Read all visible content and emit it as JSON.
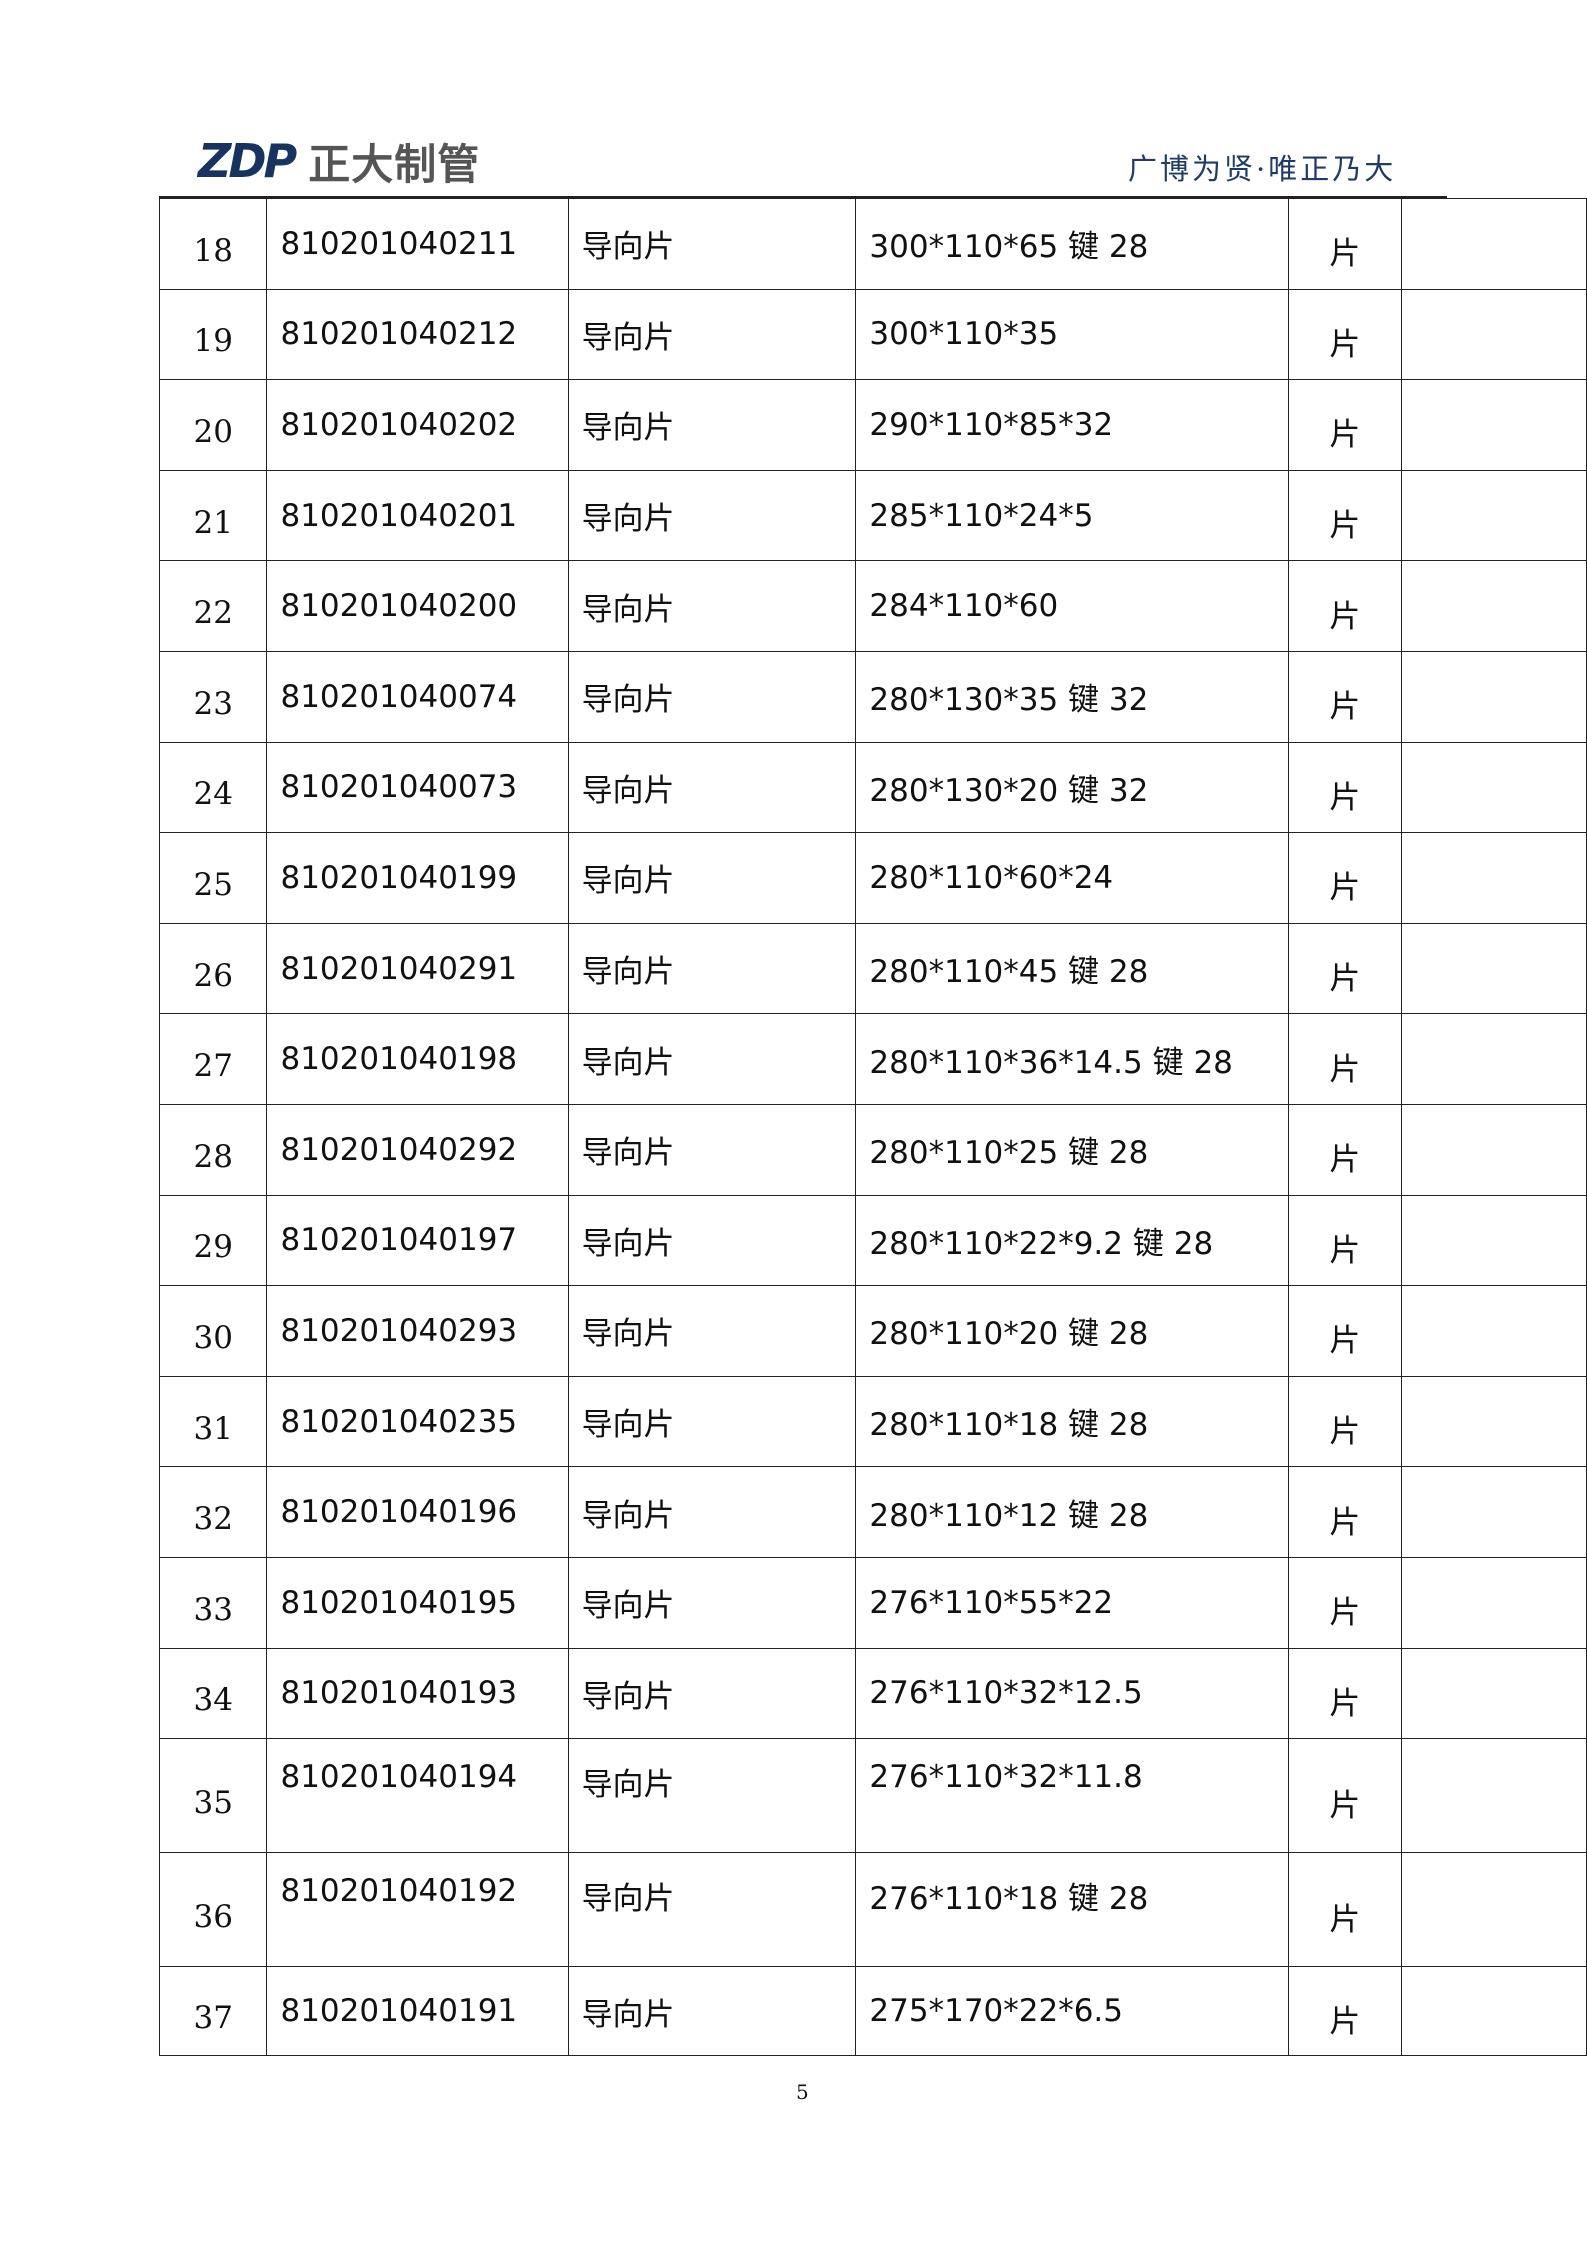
{
  "header": {
    "logo_mark": "ZDP",
    "logo_text": "正大制管",
    "tagline": "广博为贤·唯正乃大"
  },
  "rows": [
    {
      "no": "18",
      "code": "810201040211",
      "name": "导向片",
      "spec": "300*110*65 键 28",
      "unit": "片",
      "remark": ""
    },
    {
      "no": "19",
      "code": "810201040212",
      "name": "导向片",
      "spec": "300*110*35",
      "unit": "片",
      "remark": ""
    },
    {
      "no": "20",
      "code": "810201040202",
      "name": "导向片",
      "spec": "290*110*85*32",
      "unit": "片",
      "remark": ""
    },
    {
      "no": "21",
      "code": "810201040201",
      "name": "导向片",
      "spec": "285*110*24*5",
      "unit": "片",
      "remark": ""
    },
    {
      "no": "22",
      "code": "810201040200",
      "name": "导向片",
      "spec": "284*110*60",
      "unit": "片",
      "remark": ""
    },
    {
      "no": "23",
      "code": "810201040074",
      "name": "导向片",
      "spec": "280*130*35 键 32",
      "unit": "片",
      "remark": ""
    },
    {
      "no": "24",
      "code": "810201040073",
      "name": "导向片",
      "spec": "280*130*20 键 32",
      "unit": "片",
      "remark": ""
    },
    {
      "no": "25",
      "code": "810201040199",
      "name": "导向片",
      "spec": "280*110*60*24",
      "unit": "片",
      "remark": ""
    },
    {
      "no": "26",
      "code": "810201040291",
      "name": "导向片",
      "spec": "280*110*45 键 28",
      "unit": "片",
      "remark": ""
    },
    {
      "no": "27",
      "code": "810201040198",
      "name": "导向片",
      "spec": "280*110*36*14.5 键 28",
      "unit": "片",
      "remark": ""
    },
    {
      "no": "28",
      "code": "810201040292",
      "name": "导向片",
      "spec": "280*110*25 键 28",
      "unit": "片",
      "remark": ""
    },
    {
      "no": "29",
      "code": "810201040197",
      "name": "导向片",
      "spec": "280*110*22*9.2 键 28",
      "unit": "片",
      "remark": ""
    },
    {
      "no": "30",
      "code": "810201040293",
      "name": "导向片",
      "spec": "280*110*20 键 28",
      "unit": "片",
      "remark": ""
    },
    {
      "no": "31",
      "code": "810201040235",
      "name": "导向片",
      "spec": "280*110*18 键 28",
      "unit": "片",
      "remark": ""
    },
    {
      "no": "32",
      "code": "810201040196",
      "name": "导向片",
      "spec": "280*110*12  键 28",
      "unit": "片",
      "remark": ""
    },
    {
      "no": "33",
      "code": "810201040195",
      "name": "导向片",
      "spec": "276*110*55*22",
      "unit": "片",
      "remark": ""
    },
    {
      "no": "34",
      "code": "810201040193",
      "name": "导向片",
      "spec": "276*110*32*12.5",
      "unit": "片",
      "remark": ""
    },
    {
      "no": "35",
      "code": "810201040194",
      "name": "导向片",
      "spec": "276*110*32*11.8",
      "unit": "片",
      "remark": ""
    },
    {
      "no": "36",
      "code": "810201040192",
      "name": "导向片",
      "spec": "276*110*18 键 28",
      "unit": "片",
      "remark": ""
    },
    {
      "no": "37",
      "code": "810201040191",
      "name": "导向片",
      "spec": "275*170*22*6.5",
      "unit": "片",
      "remark": ""
    }
  ],
  "footer": {
    "page_number": "5"
  }
}
